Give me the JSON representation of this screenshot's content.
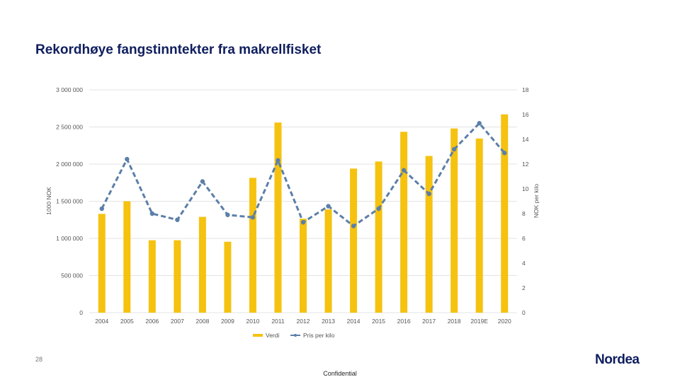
{
  "slide": {
    "title": "Rekordhøye fangstinntekter fra makrellfisket",
    "page_number": "28",
    "footer": "Confidential",
    "logo_text": "Nordea",
    "brand_color": "#0f1e5e"
  },
  "chart_data": {
    "type": "bar",
    "categories": [
      "2004",
      "2005",
      "2006",
      "2007",
      "2008",
      "2009",
      "2010",
      "2011",
      "2012",
      "2013",
      "2014",
      "2015",
      "2016",
      "2017",
      "2018",
      "2019E",
      "2020"
    ],
    "series": [
      {
        "name": "Verdi",
        "type": "bar",
        "axis": "left",
        "color": "#f5c20f",
        "values": [
          1330000,
          1500000,
          975000,
          975000,
          1290000,
          955000,
          1815000,
          2560000,
          1265000,
          1390000,
          1940000,
          2035000,
          2435000,
          2110000,
          2480000,
          2345000,
          2670000
        ]
      },
      {
        "name": "Pris per kilo",
        "type": "line",
        "axis": "right",
        "color": "#5b7fa8",
        "values": [
          8.4,
          12.4,
          8.0,
          7.5,
          10.6,
          7.9,
          7.7,
          12.3,
          7.3,
          8.6,
          7.0,
          8.4,
          11.5,
          9.6,
          13.2,
          15.3,
          12.9
        ]
      }
    ],
    "y_left": {
      "label": "1000 NOK",
      "ylim": [
        0,
        3000000
      ],
      "ticks": [
        0,
        500000,
        1000000,
        1500000,
        2000000,
        2500000,
        3000000
      ],
      "tick_labels": [
        "0",
        "500 000",
        "1 000 000",
        "1 500 000",
        "2 000 000",
        "2 500 000",
        "3 000 000"
      ]
    },
    "y_right": {
      "label": "NOK per kilo",
      "ylim": [
        0,
        18
      ],
      "ticks": [
        0,
        2,
        4,
        6,
        8,
        10,
        12,
        14,
        16,
        18
      ],
      "tick_labels": [
        "0",
        "2",
        "4",
        "6",
        "8",
        "10",
        "12",
        "14",
        "16",
        "18"
      ]
    },
    "grid": true,
    "legend_position": "bottom"
  }
}
